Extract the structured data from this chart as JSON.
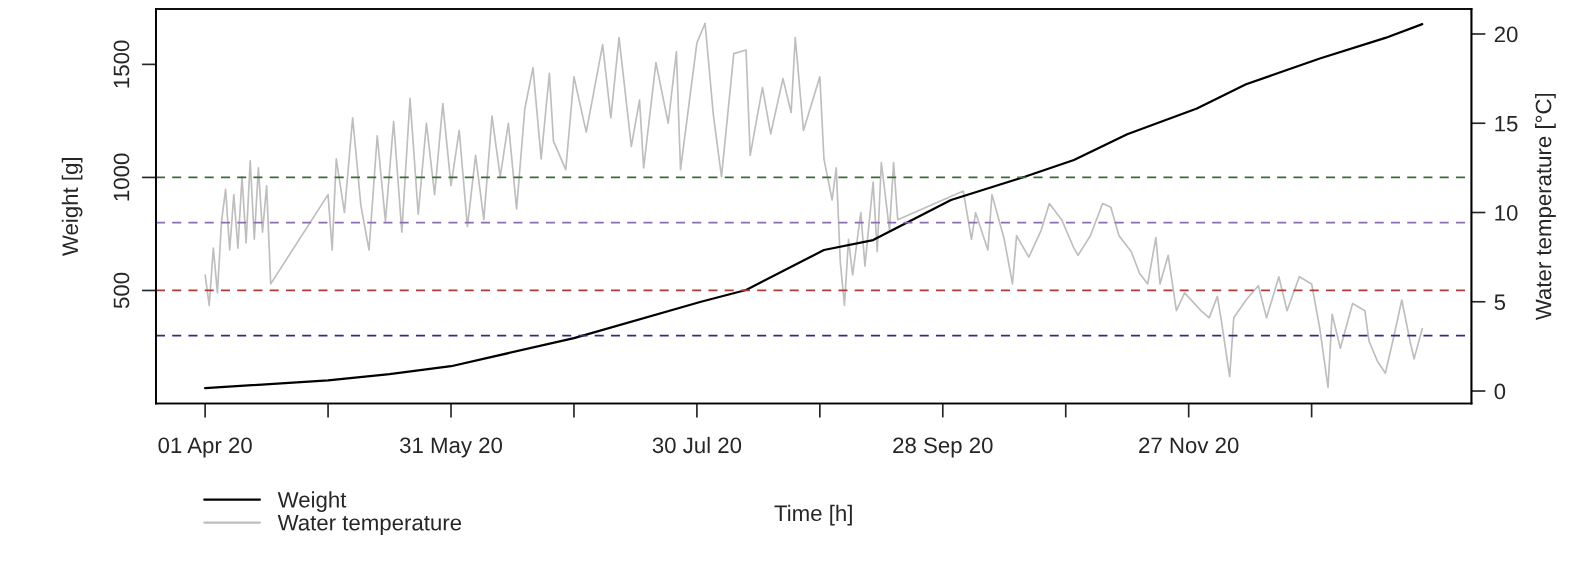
{
  "chart_data": {
    "type": "line",
    "xlabel": "Time [h]",
    "ylabel": "Weight [g]",
    "y2label": "Water temperature [°C]",
    "xlim": [
      "2020-03-20",
      "2021-02-04"
    ],
    "xticks": [
      {
        "value": "2020-04-01",
        "label": "01 Apr 20"
      },
      {
        "value": "2020-05-01",
        "label": null
      },
      {
        "value": "2020-05-31",
        "label": "31 May 20"
      },
      {
        "value": "2020-06-30",
        "label": null
      },
      {
        "value": "2020-07-30",
        "label": "30 Jul 20"
      },
      {
        "value": "2020-08-29",
        "label": null
      },
      {
        "value": "2020-09-28",
        "label": "28 Sep 20"
      },
      {
        "value": "2020-10-28",
        "label": null
      },
      {
        "value": "2020-11-27",
        "label": "27 Nov 20"
      },
      {
        "value": "2020-12-27",
        "label": null
      }
    ],
    "ylim": [
      0,
      1745
    ],
    "yticks": [
      500,
      1000,
      1500
    ],
    "y2lim": [
      -0.7,
      21.4
    ],
    "y2ticks": [
      0,
      5,
      10,
      15,
      20
    ],
    "grid": false,
    "legend": "bottom left",
    "ref_lines": [
      {
        "axis": "y",
        "value": 1000,
        "color": "#3a6b3a",
        "line_style": "dashed"
      },
      {
        "axis": "y",
        "value": 800,
        "color": "#8a6fb0",
        "line_style": "dashed"
      },
      {
        "axis": "y",
        "value": 500,
        "color": "#b03a3a",
        "line_style": "dashed"
      },
      {
        "axis": "y",
        "value": 300,
        "color": "#2e2e80",
        "line_style": "dashed"
      }
    ],
    "series": [
      {
        "name": "Weight",
        "color": "#000000",
        "x": [
          "2020-04-01",
          "2020-05-01",
          "2020-05-16",
          "2020-05-31",
          "2020-06-30",
          "2020-07-31",
          "2020-08-11",
          "2020-08-30",
          "2020-09-11",
          "2020-09-30",
          "2020-10-18",
          "2020-10-30",
          "2020-11-12",
          "2020-11-29",
          "2020-12-11",
          "2020-12-29",
          "2021-01-14",
          "2021-01-23"
        ],
        "values": [
          68,
          102,
          130,
          165,
          289,
          450,
          502,
          679,
          723,
          900,
          1003,
          1077,
          1191,
          1305,
          1412,
          1526,
          1617,
          1678
        ]
      },
      {
        "name": "Water temperature",
        "color": "#bebebe",
        "axis": "y2",
        "x": [
          "2020-04-01",
          "2020-04-02",
          "2020-04-03",
          "2020-04-04",
          "2020-04-05",
          "2020-04-06",
          "2020-04-07",
          "2020-04-08",
          "2020-04-09",
          "2020-04-10",
          "2020-04-11",
          "2020-04-12",
          "2020-04-13",
          "2020-04-14",
          "2020-04-15",
          "2020-04-16",
          "2020-04-17",
          "2020-05-01",
          "2020-05-02",
          "2020-05-03",
          "2020-05-05",
          "2020-05-07",
          "2020-05-09",
          "2020-05-11",
          "2020-05-13",
          "2020-05-15",
          "2020-05-17",
          "2020-05-19",
          "2020-05-21",
          "2020-05-23",
          "2020-05-25",
          "2020-05-27",
          "2020-05-29",
          "2020-05-31",
          "2020-06-02",
          "2020-06-04",
          "2020-06-06",
          "2020-06-08",
          "2020-06-10",
          "2020-06-12",
          "2020-06-14",
          "2020-06-16",
          "2020-06-18",
          "2020-06-20",
          "2020-06-22",
          "2020-06-24",
          "2020-06-25",
          "2020-06-28",
          "2020-06-30",
          "2020-07-03",
          "2020-07-07",
          "2020-07-09",
          "2020-07-11",
          "2020-07-14",
          "2020-07-16",
          "2020-07-17",
          "2020-07-20",
          "2020-07-23",
          "2020-07-25",
          "2020-07-26",
          "2020-07-30",
          "2020-08-01",
          "2020-08-03",
          "2020-08-05",
          "2020-08-08",
          "2020-08-11",
          "2020-08-12",
          "2020-08-15",
          "2020-08-17",
          "2020-08-20",
          "2020-08-22",
          "2020-08-23",
          "2020-08-25",
          "2020-08-29",
          "2020-08-30",
          "2020-09-01",
          "2020-09-02",
          "2020-09-03",
          "2020-09-04",
          "2020-09-05",
          "2020-09-06",
          "2020-09-08",
          "2020-09-09",
          "2020-09-11",
          "2020-09-12",
          "2020-09-13",
          "2020-09-15",
          "2020-09-16",
          "2020-09-17",
          "2020-10-03",
          "2020-10-05",
          "2020-10-06",
          "2020-10-09",
          "2020-10-10",
          "2020-10-13",
          "2020-10-15",
          "2020-10-16",
          "2020-10-19",
          "2020-10-22",
          "2020-10-24",
          "2020-10-27",
          "2020-10-30",
          "2020-10-31",
          "2020-11-03",
          "2020-11-06",
          "2020-11-08",
          "2020-11-10",
          "2020-11-13",
          "2020-11-15",
          "2020-11-17",
          "2020-11-19",
          "2020-11-20",
          "2020-11-22",
          "2020-11-24",
          "2020-11-26",
          "2020-11-30",
          "2020-12-02",
          "2020-12-04",
          "2020-12-05",
          "2020-12-07",
          "2020-12-08",
          "2020-12-11",
          "2020-12-14",
          "2020-12-16",
          "2020-12-19",
          "2020-12-21",
          "2020-12-24",
          "2020-12-27",
          "2020-12-29",
          "2020-12-31",
          "2021-01-01",
          "2021-01-03",
          "2021-01-06",
          "2021-01-09",
          "2021-01-10",
          "2021-01-12",
          "2021-01-14",
          "2021-01-16",
          "2021-01-18",
          "2021-01-20",
          "2021-01-21",
          "2021-01-23"
        ],
        "values": [
          6.5,
          4.8,
          8.0,
          5.5,
          9.5,
          11.3,
          7.9,
          11.0,
          8.0,
          12.0,
          8.3,
          12.9,
          8.5,
          12.5,
          8.9,
          11.5,
          6.0,
          11.0,
          7.9,
          13.0,
          10.0,
          15.3,
          10.4,
          7.9,
          14.3,
          9.5,
          15.1,
          8.9,
          16.4,
          9.9,
          15.0,
          11.0,
          16.1,
          11.5,
          14.6,
          9.2,
          13.2,
          9.6,
          15.4,
          12.0,
          15.0,
          10.2,
          15.8,
          18.1,
          13.0,
          17.8,
          14.0,
          12.4,
          17.6,
          14.5,
          19.4,
          15.3,
          19.8,
          13.7,
          16.3,
          12.5,
          18.4,
          15.0,
          19.0,
          12.4,
          19.5,
          20.6,
          15.5,
          12.0,
          18.9,
          19.1,
          13.2,
          17.0,
          14.4,
          17.5,
          15.6,
          19.8,
          14.6,
          17.6,
          13.0,
          10.7,
          12.5,
          7.2,
          4.8,
          8.5,
          6.5,
          10.0,
          7.0,
          11.7,
          7.8,
          12.8,
          9.0,
          12.8,
          9.6,
          11.2,
          8.5,
          10.0,
          7.9,
          11.0,
          8.5,
          6.0,
          8.7,
          7.5,
          9.0,
          10.5,
          9.6,
          8.0,
          7.6,
          8.7,
          10.5,
          10.3,
          8.7,
          7.8,
          6.6,
          6.0,
          8.6,
          6.0,
          7.6,
          4.5,
          5.5,
          4.5,
          4.1,
          5.3,
          3.9,
          0.8,
          4.1,
          5.1,
          5.9,
          4.1,
          6.4,
          4.5,
          6.4,
          6.0,
          3.5,
          0.2,
          4.3,
          2.4,
          4.9,
          4.5,
          2.8,
          1.7,
          1.0,
          3.0,
          5.1,
          2.8,
          1.8,
          3.5
        ]
      }
    ]
  }
}
